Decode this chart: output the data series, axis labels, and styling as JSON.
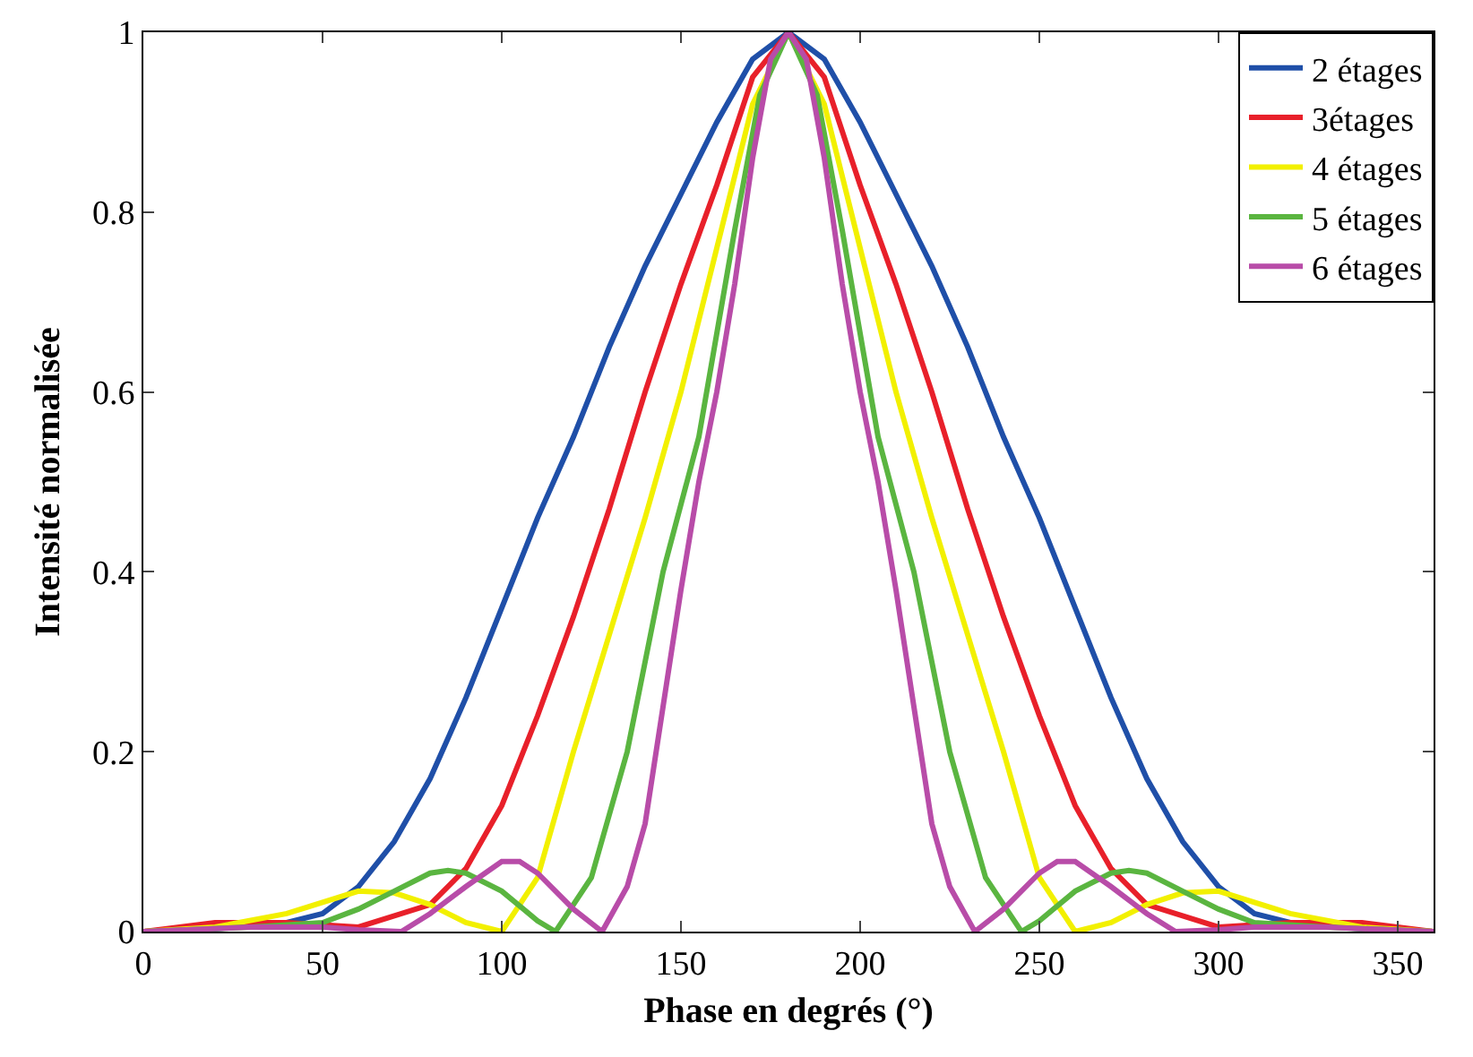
{
  "chart_data": {
    "type": "line",
    "xlabel": "Phase en degrés (°)",
    "ylabel": "Intensité normalisée",
    "xlim": [
      0,
      360
    ],
    "xticks": [
      0,
      50,
      100,
      150,
      200,
      250,
      300,
      350
    ],
    "ylim": [
      0,
      1
    ],
    "yticks": [
      0,
      0.2,
      0.4,
      0.6,
      0.8,
      1
    ],
    "grid": false,
    "legend": "top right",
    "line_style": "solid",
    "marker": "none",
    "series": [
      {
        "name": "2 étages",
        "color": "#1f4fa8",
        "x": [
          0,
          20,
          40,
          50,
          60,
          70,
          80,
          90,
          100,
          110,
          120,
          130,
          140,
          150,
          160,
          170,
          180,
          190,
          200,
          210,
          220,
          230,
          240,
          250,
          260,
          270,
          280,
          290,
          300,
          310,
          320,
          340,
          360
        ],
        "values": [
          0,
          0.003,
          0.01,
          0.02,
          0.05,
          0.1,
          0.17,
          0.26,
          0.36,
          0.46,
          0.55,
          0.65,
          0.74,
          0.82,
          0.9,
          0.97,
          1,
          0.97,
          0.9,
          0.82,
          0.74,
          0.65,
          0.55,
          0.46,
          0.36,
          0.26,
          0.17,
          0.1,
          0.05,
          0.02,
          0.01,
          0.003,
          0
        ]
      },
      {
        "name": "3étages",
        "color": "#e8202a",
        "x": [
          0,
          20,
          40,
          60,
          80,
          90,
          100,
          110,
          120,
          130,
          140,
          150,
          160,
          170,
          180,
          190,
          200,
          210,
          220,
          230,
          240,
          250,
          260,
          270,
          280,
          300,
          320,
          340,
          360
        ],
        "values": [
          0,
          0.01,
          0.01,
          0.005,
          0.03,
          0.07,
          0.14,
          0.24,
          0.35,
          0.47,
          0.6,
          0.72,
          0.83,
          0.95,
          1,
          0.95,
          0.83,
          0.72,
          0.6,
          0.47,
          0.35,
          0.24,
          0.14,
          0.07,
          0.03,
          0.005,
          0.01,
          0.01,
          0
        ]
      },
      {
        "name": "4 étages",
        "color": "#f2f000",
        "x": [
          0,
          20,
          40,
          60,
          70,
          80,
          90,
          100,
          110,
          120,
          130,
          140,
          150,
          160,
          170,
          180,
          190,
          200,
          210,
          220,
          230,
          240,
          250,
          260,
          270,
          280,
          290,
          300,
          320,
          340,
          360
        ],
        "values": [
          0,
          0.005,
          0.02,
          0.045,
          0.043,
          0.03,
          0.01,
          0,
          0.06,
          0.2,
          0.33,
          0.46,
          0.6,
          0.76,
          0.92,
          1,
          0.92,
          0.76,
          0.6,
          0.46,
          0.33,
          0.2,
          0.06,
          0,
          0.01,
          0.03,
          0.043,
          0.045,
          0.02,
          0.005,
          0
        ]
      },
      {
        "name": "5 étages",
        "color": "#5ab540",
        "x": [
          0,
          30,
          50,
          60,
          70,
          80,
          85,
          90,
          100,
          110,
          115,
          125,
          135,
          145,
          155,
          165,
          172,
          180,
          188,
          195,
          205,
          215,
          225,
          235,
          245,
          250,
          260,
          270,
          275,
          280,
          290,
          300,
          310,
          330,
          360
        ],
        "values": [
          0,
          0.005,
          0.01,
          0.025,
          0.045,
          0.065,
          0.068,
          0.065,
          0.045,
          0.012,
          0,
          0.06,
          0.2,
          0.4,
          0.55,
          0.78,
          0.93,
          1,
          0.93,
          0.78,
          0.55,
          0.4,
          0.2,
          0.06,
          0,
          0.012,
          0.045,
          0.065,
          0.068,
          0.065,
          0.045,
          0.025,
          0.01,
          0.005,
          0
        ]
      },
      {
        "name": "6 étages",
        "color": "#b84ca8",
        "x": [
          0,
          30,
          50,
          60,
          72,
          80,
          90,
          100,
          105,
          110,
          120,
          128,
          135,
          140,
          145,
          150,
          155,
          160,
          165,
          170,
          175,
          180,
          185,
          190,
          195,
          200,
          205,
          210,
          215,
          220,
          225,
          232,
          240,
          250,
          255,
          260,
          270,
          280,
          288,
          300,
          310,
          330,
          360
        ],
        "values": [
          0,
          0.005,
          0.005,
          0.002,
          0,
          0.02,
          0.05,
          0.078,
          0.078,
          0.065,
          0.025,
          0,
          0.05,
          0.12,
          0.25,
          0.38,
          0.5,
          0.6,
          0.72,
          0.86,
          0.97,
          1,
          0.97,
          0.86,
          0.72,
          0.6,
          0.5,
          0.38,
          0.25,
          0.12,
          0.05,
          0,
          0.025,
          0.065,
          0.078,
          0.078,
          0.05,
          0.02,
          0,
          0.002,
          0.005,
          0.005,
          0
        ]
      }
    ]
  }
}
